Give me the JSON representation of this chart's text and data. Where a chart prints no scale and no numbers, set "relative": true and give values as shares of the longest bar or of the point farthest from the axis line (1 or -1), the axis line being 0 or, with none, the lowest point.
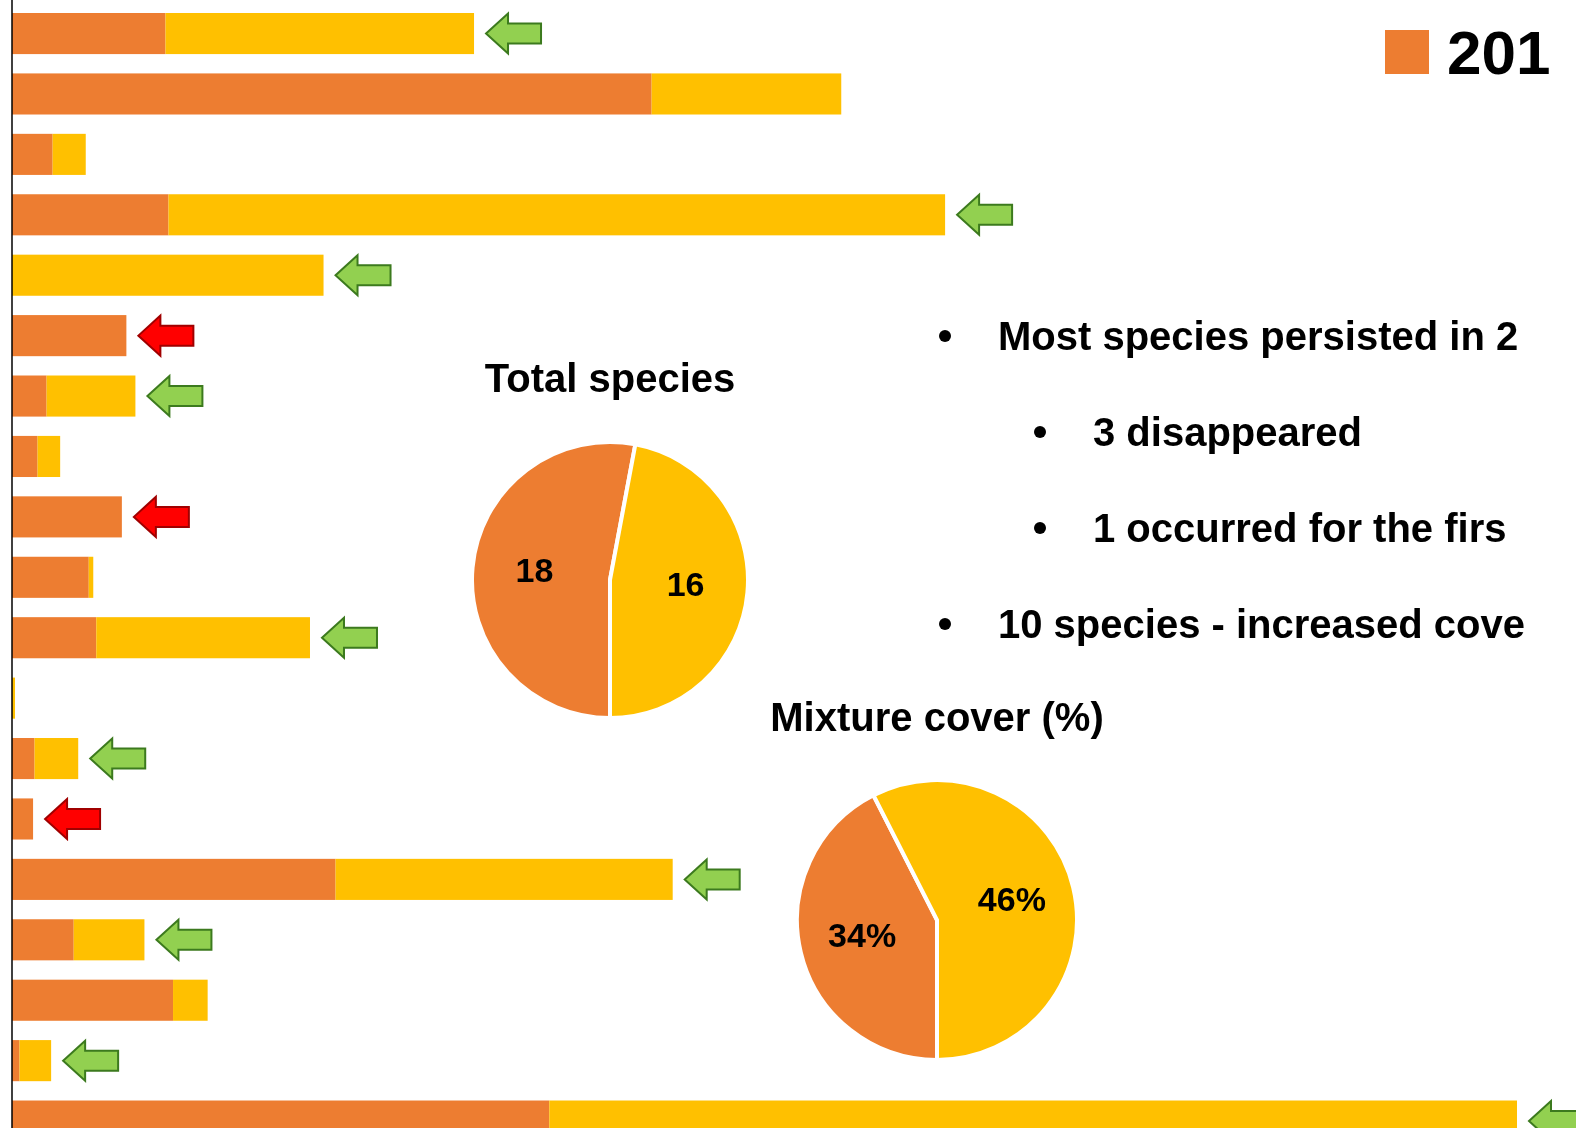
{
  "chart_data": [
    {
      "type": "bar",
      "orientation": "horizontal",
      "stacked": true,
      "relative": true,
      "legend": "top right",
      "categories": [
        null,
        null,
        null,
        null,
        null,
        null,
        null,
        null,
        null,
        null,
        null,
        null,
        null,
        null,
        null,
        null,
        null,
        null,
        null
      ],
      "series": [
        {
          "name": "201",
          "color": "#ed7d31",
          "values": [
            0.102,
            0.425,
            0.027,
            0.104,
            0,
            0.076,
            0.023,
            0.017,
            0.073,
            0.051,
            0.056,
            0,
            0.015,
            0.014,
            0.215,
            0.041,
            0.107,
            0.005,
            0.357
          ]
        },
        {
          "color": "#ffc000",
          "values": [
            0.205,
            0.126,
            0.022,
            0.516,
            0.207,
            0,
            0.059,
            0.015,
            0,
            0.003,
            0.142,
            0.002,
            0.029,
            0,
            0.224,
            0.047,
            0.023,
            0.021,
            0.643
          ]
        }
      ]
    },
    {
      "type": "pie",
      "title": "Total species",
      "categories": [
        null,
        null
      ],
      "values": [
        18,
        16
      ],
      "colors": [
        "#ed7d31",
        "#ffc000"
      ],
      "data_labels": true
    },
    {
      "type": "pie",
      "title": "Mixture cover (%)",
      "categories": [
        null,
        null
      ],
      "values": [
        34,
        46
      ],
      "colors": [
        "#ed7d31",
        "#ffc000"
      ],
      "value_labels": [
        "34%",
        "46%"
      ]
    },
    {
      "type": "other",
      "annotations": [
        "Most species persisted in 2",
        "3 disappeared",
        "1 occurred for the firs",
        "10 species - increased cove"
      ]
    }
  ]
}
